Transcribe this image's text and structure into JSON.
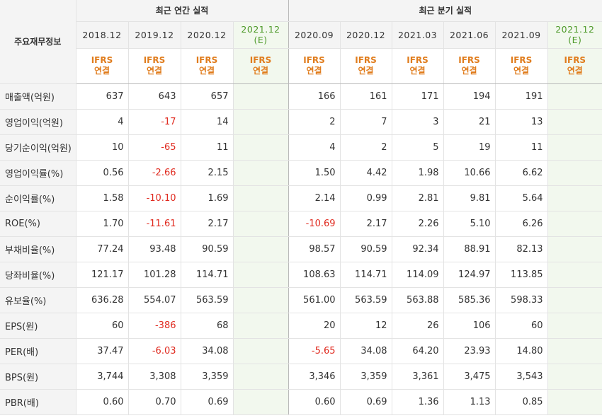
{
  "header": {
    "corner_label": "주요재무정보",
    "annual_group": "최근 연간 실적",
    "quarter_group": "최근 분기 실적",
    "annual_periods": [
      "2018.12",
      "2019.12",
      "2020.12"
    ],
    "annual_estimate": {
      "year": "2021.12",
      "tag": "(E)"
    },
    "quarter_periods": [
      "2020.09",
      "2020.12",
      "2021.03",
      "2021.06",
      "2021.09"
    ],
    "quarter_estimate": {
      "year": "2021.12",
      "tag": "(E)"
    },
    "basis_line1": "IFRS",
    "basis_line2": "연결"
  },
  "colors": {
    "negative": "#e02a1f",
    "ifrs": "#e07c1c",
    "estimate_bg": "#f2f8ee",
    "estimate_text": "#4e9a2a"
  },
  "rows": [
    {
      "label": "매출액(억원)",
      "annual": [
        "637",
        "643",
        "657"
      ],
      "annual_est": "",
      "quarter": [
        "166",
        "161",
        "171",
        "194",
        "191"
      ],
      "quarter_est": ""
    },
    {
      "label": "영업이익(억원)",
      "annual": [
        "4",
        "-17",
        "14"
      ],
      "annual_est": "",
      "quarter": [
        "2",
        "7",
        "3",
        "21",
        "13"
      ],
      "quarter_est": ""
    },
    {
      "label": "당기순이익(억원)",
      "annual": [
        "10",
        "-65",
        "11"
      ],
      "annual_est": "",
      "quarter": [
        "4",
        "2",
        "5",
        "19",
        "11"
      ],
      "quarter_est": ""
    },
    {
      "label": "영업이익률(%)",
      "annual": [
        "0.56",
        "-2.66",
        "2.15"
      ],
      "annual_est": "",
      "quarter": [
        "1.50",
        "4.42",
        "1.98",
        "10.66",
        "6.62"
      ],
      "quarter_est": ""
    },
    {
      "label": "순이익률(%)",
      "annual": [
        "1.58",
        "-10.10",
        "1.69"
      ],
      "annual_est": "",
      "quarter": [
        "2.14",
        "0.99",
        "2.81",
        "9.81",
        "5.64"
      ],
      "quarter_est": ""
    },
    {
      "label": "ROE(%)",
      "annual": [
        "1.70",
        "-11.61",
        "2.17"
      ],
      "annual_est": "",
      "quarter": [
        "-10.69",
        "2.17",
        "2.26",
        "5.10",
        "6.26"
      ],
      "quarter_est": ""
    },
    {
      "label": "부채비율(%)",
      "annual": [
        "77.24",
        "93.48",
        "90.59"
      ],
      "annual_est": "",
      "quarter": [
        "98.57",
        "90.59",
        "92.34",
        "88.91",
        "82.13"
      ],
      "quarter_est": ""
    },
    {
      "label": "당좌비율(%)",
      "annual": [
        "121.17",
        "101.28",
        "114.71"
      ],
      "annual_est": "",
      "quarter": [
        "108.63",
        "114.71",
        "114.09",
        "124.97",
        "113.85"
      ],
      "quarter_est": ""
    },
    {
      "label": "유보율(%)",
      "annual": [
        "636.28",
        "554.07",
        "563.59"
      ],
      "annual_est": "",
      "quarter": [
        "561.00",
        "563.59",
        "563.88",
        "585.36",
        "598.33"
      ],
      "quarter_est": ""
    },
    {
      "label": "EPS(원)",
      "annual": [
        "60",
        "-386",
        "68"
      ],
      "annual_est": "",
      "quarter": [
        "20",
        "12",
        "26",
        "106",
        "60"
      ],
      "quarter_est": ""
    },
    {
      "label": "PER(배)",
      "annual": [
        "37.47",
        "-6.03",
        "34.08"
      ],
      "annual_est": "",
      "quarter": [
        "-5.65",
        "34.08",
        "64.20",
        "23.93",
        "14.80"
      ],
      "quarter_est": ""
    },
    {
      "label": "BPS(원)",
      "annual": [
        "3,744",
        "3,308",
        "3,359"
      ],
      "annual_est": "",
      "quarter": [
        "3,346",
        "3,359",
        "3,361",
        "3,475",
        "3,543"
      ],
      "quarter_est": ""
    },
    {
      "label": "PBR(배)",
      "annual": [
        "0.60",
        "0.70",
        "0.69"
      ],
      "annual_est": "",
      "quarter": [
        "0.60",
        "0.69",
        "1.36",
        "1.13",
        "0.85"
      ],
      "quarter_est": ""
    }
  ]
}
